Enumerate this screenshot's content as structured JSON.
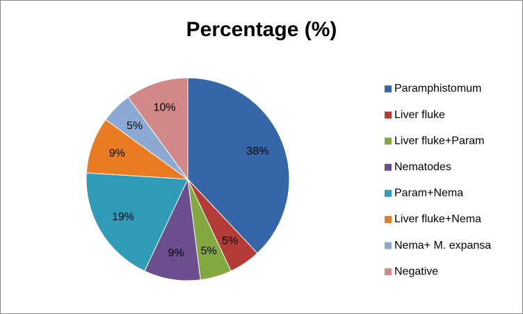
{
  "chart_data": {
    "type": "pie",
    "title": "Percentage (%)",
    "categories": [
      "Paramphistomum",
      "Liver fluke",
      "Liver fluke+Param",
      "Nematodes",
      "Param+Nema",
      "Liver fluke+Nema",
      "Nema+ M. expansa",
      "Negative"
    ],
    "values": [
      38,
      5,
      5,
      9,
      19,
      9,
      5,
      10
    ],
    "value_labels": [
      "38%",
      "5%",
      "5%",
      "9%",
      "19%",
      "9%",
      "5%",
      "10%"
    ],
    "colors": [
      "#3466a8",
      "#b53b37",
      "#82a83f",
      "#6b4e8e",
      "#2f9bb6",
      "#e97b22",
      "#8ba9d3",
      "#d18886"
    ],
    "legend": "right"
  }
}
